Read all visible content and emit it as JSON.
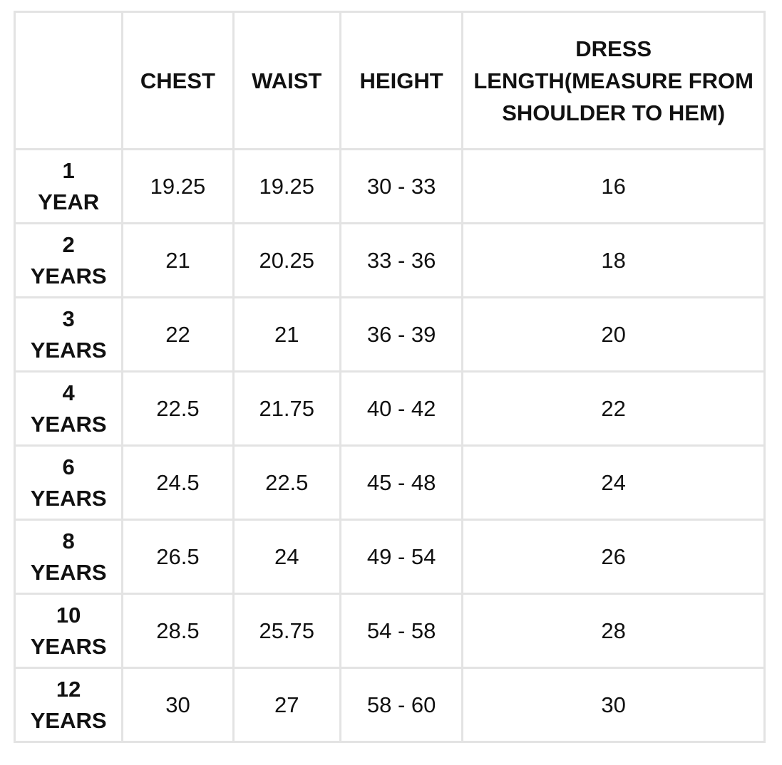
{
  "table": {
    "headers": {
      "size": "",
      "chest": "CHEST",
      "waist": "WAIST",
      "height": "HEIGHT",
      "dress_length": "DRESS LENGTH(MEASURE FROM SHOULDER TO HEM)"
    },
    "rows": [
      {
        "size_num": "1",
        "size_unit": "YEAR",
        "chest": "19.25",
        "waist": "19.25",
        "height": "30 - 33",
        "dress_length": "16"
      },
      {
        "size_num": "2",
        "size_unit": "YEARS",
        "chest": "21",
        "waist": "20.25",
        "height": "33 - 36",
        "dress_length": "18"
      },
      {
        "size_num": "3",
        "size_unit": "YEARS",
        "chest": "22",
        "waist": "21",
        "height": "36 - 39",
        "dress_length": "20"
      },
      {
        "size_num": "4",
        "size_unit": "YEARS",
        "chest": "22.5",
        "waist": "21.75",
        "height": "40 - 42",
        "dress_length": "22"
      },
      {
        "size_num": "6",
        "size_unit": "YEARS",
        "chest": "24.5",
        "waist": "22.5",
        "height": "45 - 48",
        "dress_length": "24"
      },
      {
        "size_num": "8",
        "size_unit": "YEARS",
        "chest": "26.5",
        "waist": "24",
        "height": "49 - 54",
        "dress_length": "26"
      },
      {
        "size_num": "10",
        "size_unit": "YEARS",
        "chest": "28.5",
        "waist": "25.75",
        "height": "54 - 58",
        "dress_length": "28"
      },
      {
        "size_num": "12",
        "size_unit": "YEARS",
        "chest": "30",
        "waist": "27",
        "height": "58 - 60",
        "dress_length": "30"
      }
    ]
  },
  "colors": {
    "border": "#e3e3e3",
    "text": "#111111",
    "background": "#ffffff"
  }
}
